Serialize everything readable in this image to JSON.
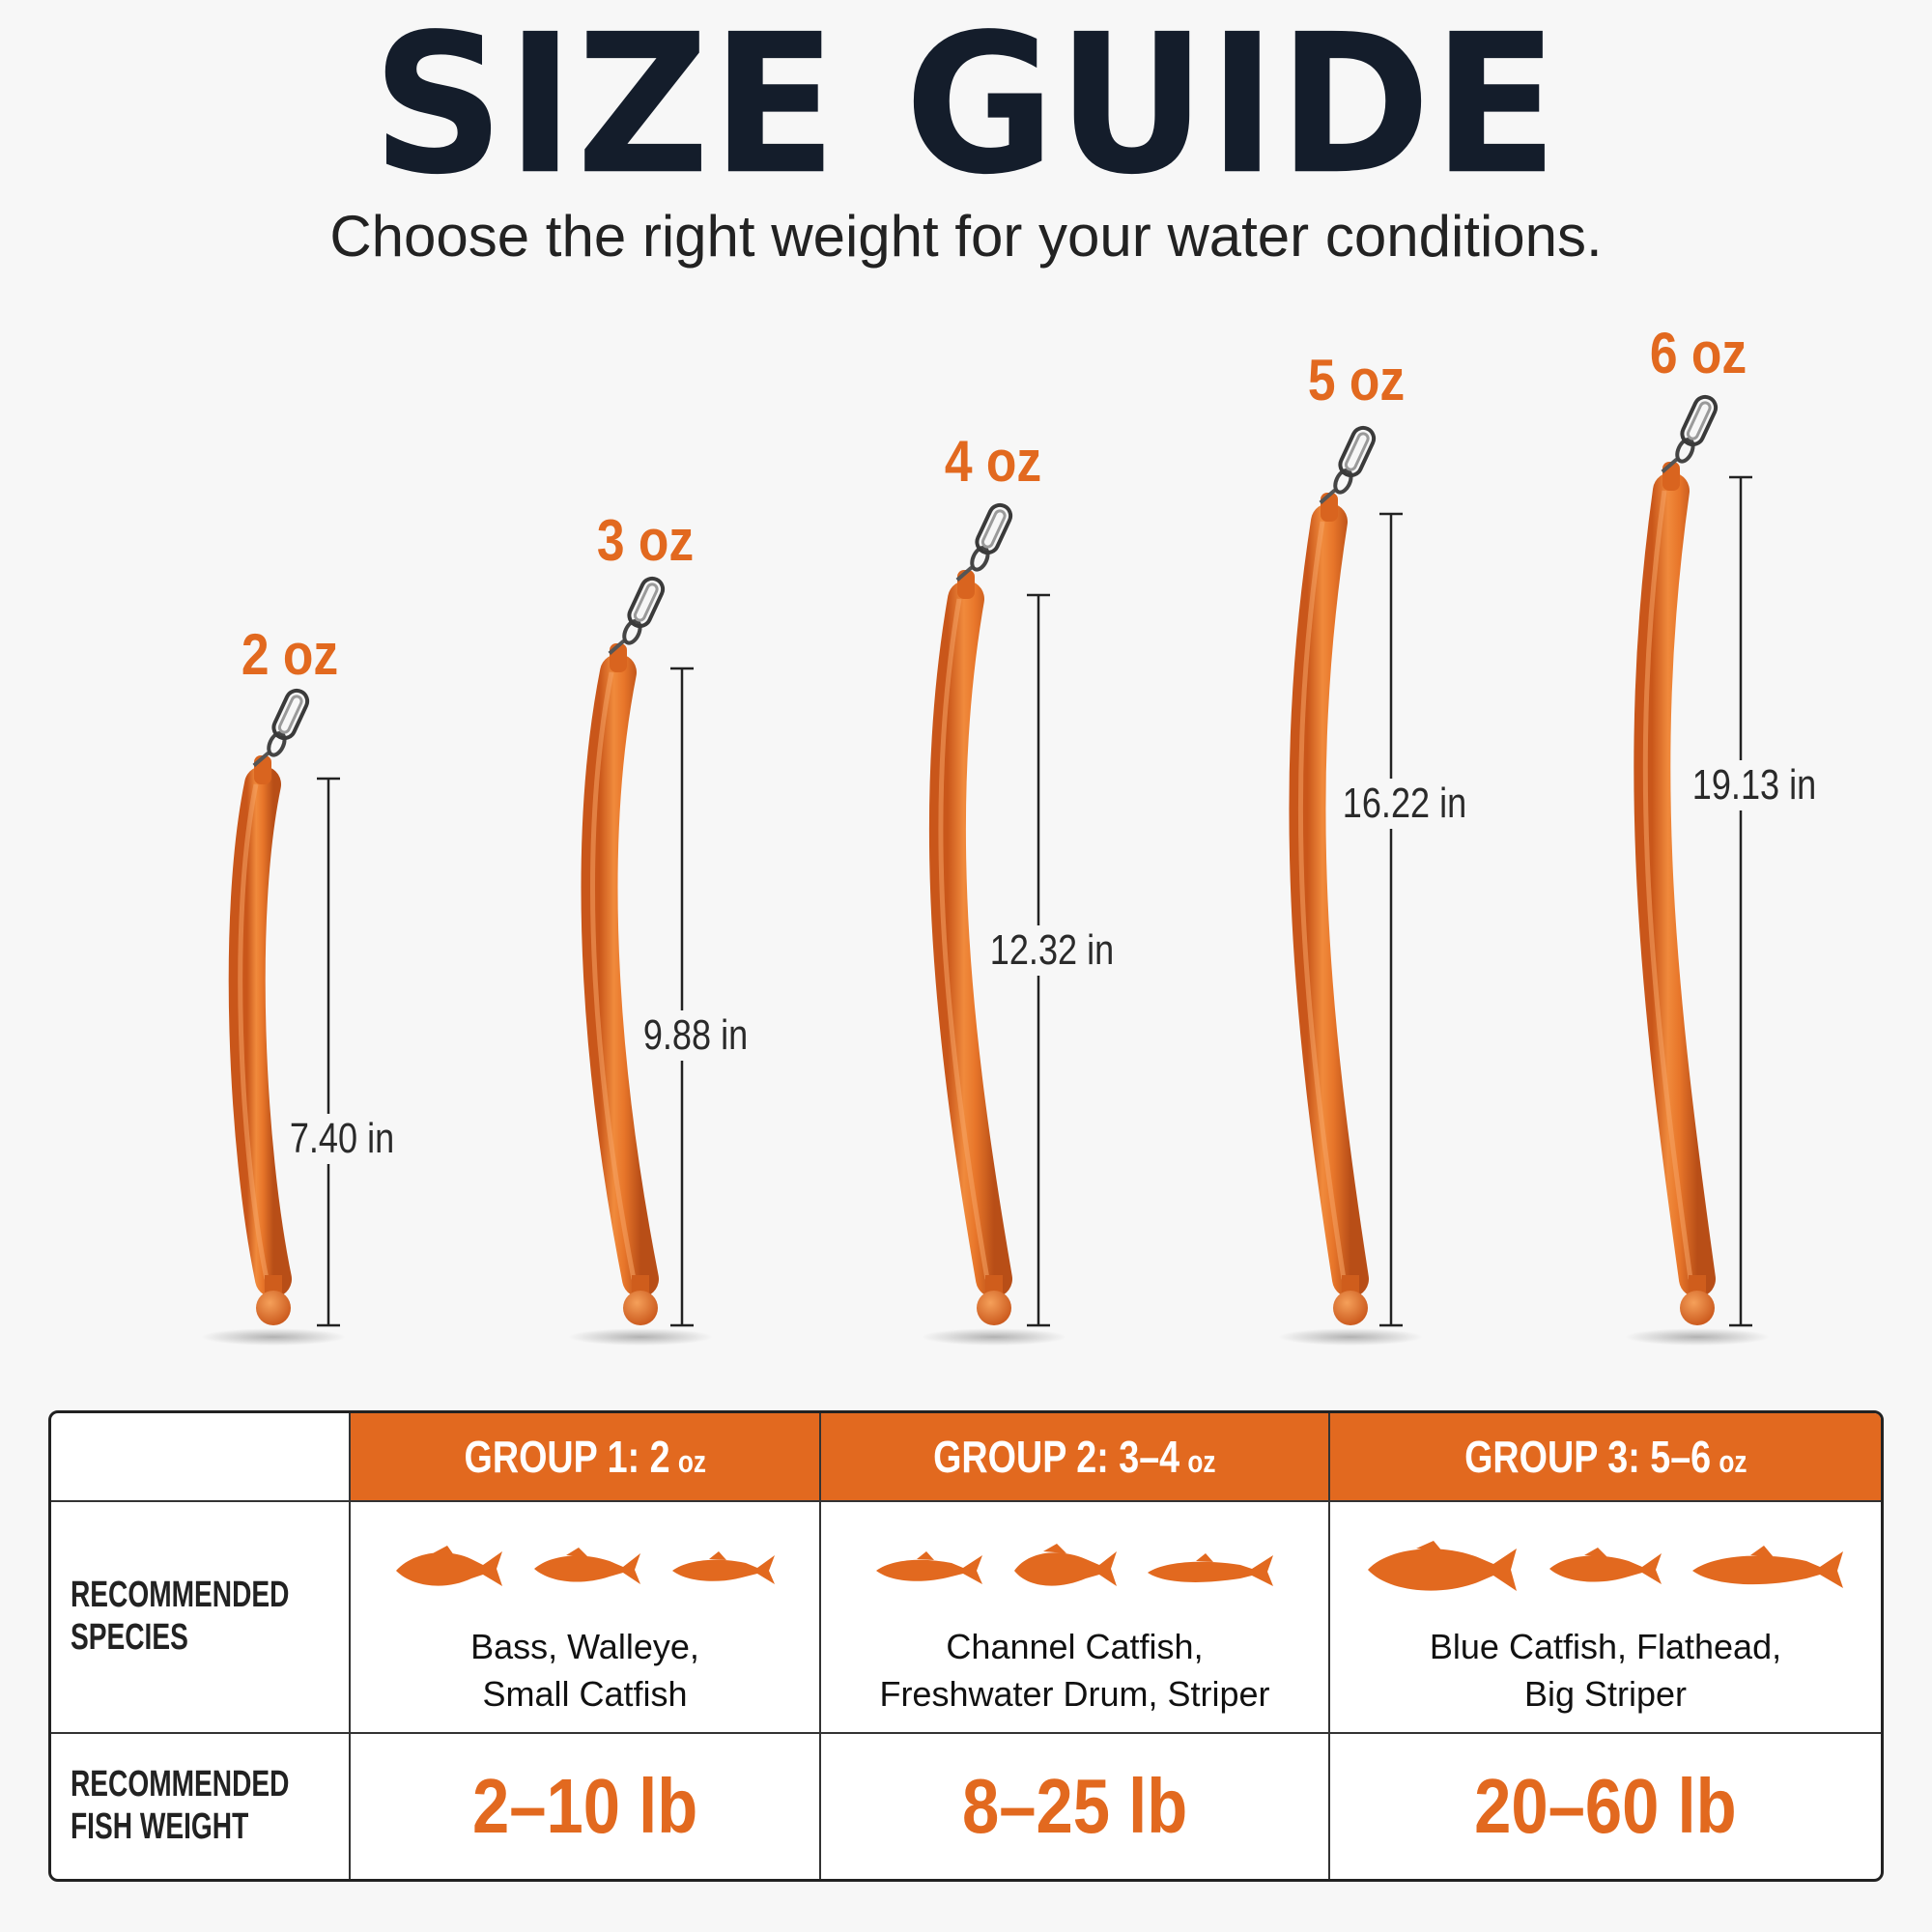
{
  "header": {
    "title": "SIZE GUIDE",
    "subtitle": "Choose the right weight for your water conditions."
  },
  "weights": [
    {
      "weight": "2 oz",
      "length": "7.40 in"
    },
    {
      "weight": "3 oz",
      "length": "9.88 in"
    },
    {
      "weight": "4 oz",
      "length": "12.32 in"
    },
    {
      "weight": "5 oz",
      "length": "16.22 in"
    },
    {
      "weight": "6 oz",
      "length": "19.13 in"
    }
  ],
  "table": {
    "row_labels": {
      "species": [
        "RECOMMENDED",
        "SPECIES"
      ],
      "fish_weight": [
        "RECOMMENDED",
        "FISH WEIGHT"
      ]
    },
    "groups": [
      {
        "name": "GROUP 1: 2",
        "unit": "oz",
        "species": [
          "Bass, Walleye,",
          "Small Catfish"
        ],
        "fish_weight": "2–10 lb"
      },
      {
        "name": "GROUP 2: 3–4",
        "unit": "oz",
        "species": [
          "Channel Catfish,",
          "Freshwater Drum, Striper"
        ],
        "fish_weight": "8–25 lb"
      },
      {
        "name": "GROUP 3: 5–6",
        "unit": "oz",
        "species": [
          "Blue Catfish, Flathead,",
          "Big Striper"
        ],
        "fish_weight": "20–60 lb"
      }
    ]
  },
  "colors": {
    "accent": "#e2691f",
    "title": "#141d2b",
    "background": "#f7f7f7"
  },
  "icons": [
    "snap-swivel-icon",
    "fish-icon"
  ]
}
